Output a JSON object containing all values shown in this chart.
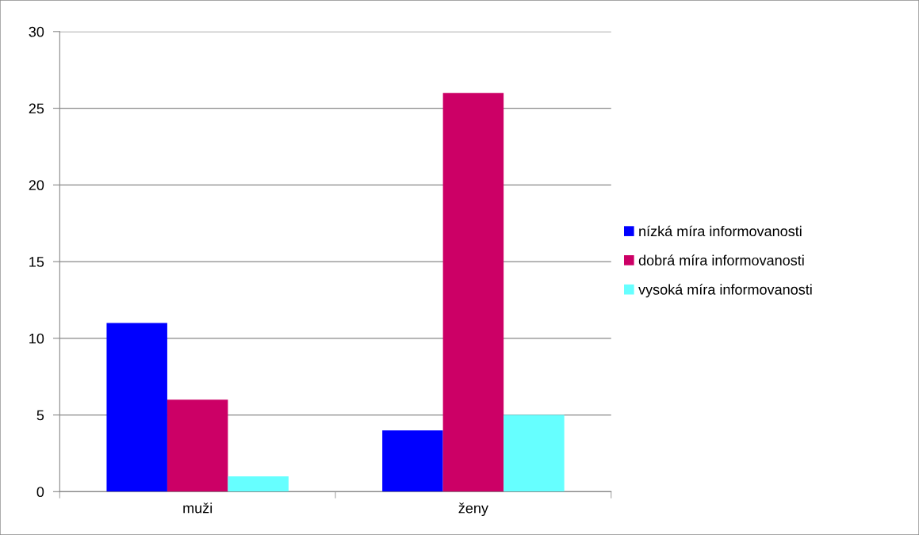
{
  "chart_data": {
    "type": "bar",
    "categories": [
      "muži",
      "ženy"
    ],
    "series": [
      {
        "name": "nízká míra informovanosti",
        "color": "#0000ff",
        "values": [
          11,
          4
        ]
      },
      {
        "name": "dobrá míra informovanosti",
        "color": "#cc0066",
        "values": [
          6,
          26
        ]
      },
      {
        "name": "vysoká míra informovanosti",
        "color": "#66ffff",
        "values": [
          1,
          5
        ]
      }
    ],
    "ylim": [
      0,
      30
    ],
    "yticks": [
      0,
      5,
      10,
      15,
      20,
      25,
      30
    ],
    "grid": "y",
    "legend": "right"
  }
}
